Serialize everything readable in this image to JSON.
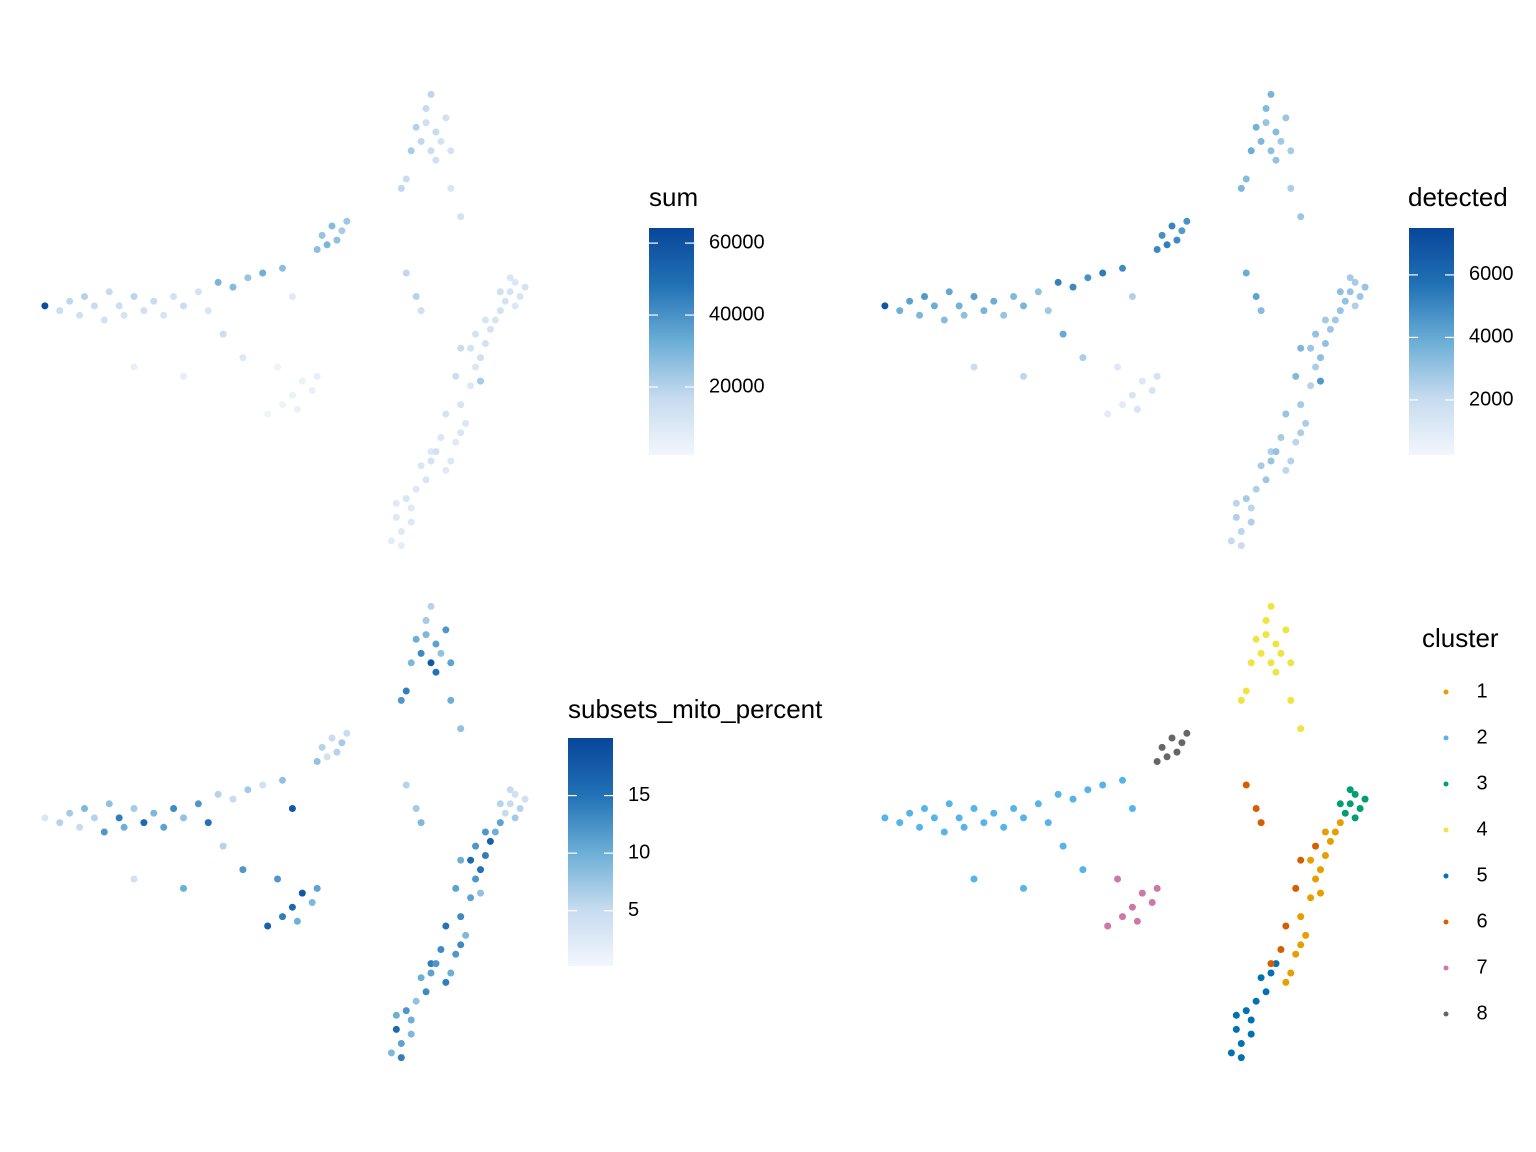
{
  "chart_data": [
    {
      "type": "scatter",
      "legend_title": "sum",
      "xlim": [
        0,
        100
      ],
      "ylim": [
        0,
        100
      ],
      "clim": [
        1100,
        64200
      ],
      "cticks": [
        20000,
        40000,
        60000
      ],
      "colorscale": [
        "#f2f6fc",
        "#c6dbef",
        "#6baed6",
        "#2171b5",
        "#08469a"
      ],
      "x": [
        2,
        5,
        7,
        9,
        10,
        12,
        14,
        15,
        17,
        18,
        20,
        22,
        24,
        26,
        28,
        30,
        33,
        35,
        37,
        40,
        43,
        46,
        50,
        52,
        38,
        30,
        20,
        42,
        79,
        81,
        78,
        82,
        80,
        77,
        83,
        79,
        81,
        76,
        84,
        80,
        75,
        84,
        86,
        74,
        96,
        97,
        98,
        95,
        97,
        99,
        94,
        96,
        93,
        91,
        89,
        92,
        88,
        86,
        87,
        90,
        85,
        84,
        88,
        94,
        90,
        86,
        83,
        91,
        85,
        83,
        82,
        86,
        80,
        89,
        77,
        75,
        78,
        72,
        74,
        73,
        76,
        75,
        77,
        79,
        78,
        80,
        74,
        76,
        81,
        73,
        49,
        52,
        54,
        56,
        50,
        57,
        47,
        53,
        58,
        60,
        62,
        59,
        61,
        63,
        57
      ],
      "y": [
        53,
        52,
        54,
        51,
        55,
        53,
        50,
        56,
        53,
        51,
        55,
        52,
        54,
        51,
        55,
        53,
        56,
        52,
        58,
        57,
        59,
        60,
        61,
        55,
        47,
        38,
        40,
        42,
        92,
        90,
        88,
        88,
        86,
        91,
        93,
        95,
        84,
        86,
        86,
        98,
        80,
        78,
        72,
        78,
        56,
        58,
        55,
        54,
        53,
        57,
        56,
        59,
        50,
        45,
        40,
        48,
        36,
        32,
        28,
        42,
        24,
        20,
        44,
        52,
        37,
        26,
        18,
        50,
        38,
        30,
        25,
        44,
        22,
        47,
        55,
        60,
        52,
        3,
        5,
        8,
        10,
        12,
        14,
        16,
        19,
        20,
        2,
        7,
        22,
        11,
        40,
        34,
        37,
        35,
        32,
        38,
        30,
        31,
        68,
        70,
        69,
        66,
        67,
        71,
        65
      ],
      "values": [
        62000,
        15000,
        18000,
        14000,
        20000,
        16000,
        13000,
        17000,
        15000,
        12000,
        19000,
        14000,
        16000,
        11000,
        13000,
        15000,
        12000,
        10000,
        30000,
        28000,
        25000,
        32000,
        27000,
        8000,
        15000,
        6000,
        5000,
        9000,
        14000,
        16000,
        18000,
        12000,
        15000,
        20000,
        13000,
        17000,
        14000,
        22000,
        12000,
        19000,
        16000,
        10000,
        13000,
        18000,
        12000,
        10000,
        11000,
        13000,
        9000,
        12000,
        14000,
        10000,
        11000,
        13000,
        10000,
        12000,
        9000,
        11000,
        10000,
        14000,
        8000,
        9000,
        12000,
        13000,
        22000,
        10000,
        8000,
        11000,
        15000,
        12000,
        10000,
        16000,
        9000,
        13000,
        20000,
        18000,
        14000,
        7000,
        8000,
        9000,
        8000,
        10000,
        9000,
        11000,
        10000,
        12000,
        6000,
        9000,
        13000,
        8000,
        3000,
        4000,
        3500,
        4500,
        3000,
        5000,
        2500,
        4000,
        25000,
        28000,
        22000,
        30000,
        26000,
        24000,
        27000
      ]
    },
    {
      "type": "scatter",
      "legend_title": "detected",
      "xlim": [
        0,
        100
      ],
      "ylim": [
        0,
        100
      ],
      "clim": [
        240,
        7500
      ],
      "cticks": [
        2000,
        4000,
        6000
      ],
      "colorscale": [
        "#f2f6fc",
        "#c6dbef",
        "#6baed6",
        "#2171b5",
        "#08469a"
      ],
      "x": [
        2,
        5,
        7,
        9,
        10,
        12,
        14,
        15,
        17,
        18,
        20,
        22,
        24,
        26,
        28,
        30,
        33,
        35,
        37,
        40,
        43,
        46,
        50,
        52,
        38,
        30,
        20,
        42,
        79,
        81,
        78,
        82,
        80,
        77,
        83,
        79,
        81,
        76,
        84,
        80,
        75,
        84,
        86,
        74,
        96,
        97,
        98,
        95,
        97,
        99,
        94,
        96,
        93,
        91,
        89,
        92,
        88,
        86,
        87,
        90,
        85,
        84,
        88,
        94,
        90,
        86,
        83,
        91,
        85,
        83,
        82,
        86,
        80,
        89,
        77,
        75,
        78,
        72,
        74,
        73,
        76,
        75,
        77,
        79,
        78,
        80,
        74,
        76,
        81,
        73,
        49,
        52,
        54,
        56,
        50,
        57,
        47,
        53,
        58,
        60,
        62,
        59,
        61,
        63,
        57
      ],
      "y": [
        53,
        52,
        54,
        51,
        55,
        53,
        50,
        56,
        53,
        51,
        55,
        52,
        54,
        51,
        55,
        53,
        56,
        52,
        58,
        57,
        59,
        60,
        61,
        55,
        47,
        38,
        40,
        42,
        92,
        90,
        88,
        88,
        86,
        91,
        93,
        95,
        84,
        86,
        86,
        98,
        80,
        78,
        72,
        78,
        56,
        58,
        55,
        54,
        53,
        57,
        56,
        59,
        50,
        45,
        40,
        48,
        36,
        32,
        28,
        42,
        24,
        20,
        44,
        52,
        37,
        26,
        18,
        50,
        38,
        30,
        25,
        44,
        22,
        47,
        55,
        60,
        52,
        3,
        5,
        8,
        10,
        12,
        14,
        16,
        19,
        20,
        2,
        7,
        22,
        11,
        40,
        34,
        37,
        35,
        32,
        38,
        30,
        31,
        68,
        70,
        69,
        66,
        67,
        71,
        65
      ],
      "values": [
        6900,
        3800,
        4200,
        3500,
        4500,
        3900,
        3300,
        4100,
        3700,
        3200,
        4300,
        3600,
        3900,
        3000,
        3400,
        3600,
        3100,
        2800,
        5200,
        5000,
        4700,
        5400,
        4900,
        2500,
        4000,
        2200,
        1900,
        2600,
        3000,
        3300,
        3500,
        2800,
        3200,
        3700,
        2900,
        3400,
        3100,
        3900,
        2700,
        3600,
        3300,
        2600,
        2900,
        3500,
        3000,
        2700,
        2900,
        3100,
        2500,
        3000,
        3200,
        2700,
        2800,
        3100,
        2600,
        2900,
        2400,
        2700,
        2600,
        3200,
        2300,
        2400,
        2900,
        3000,
        4500,
        2600,
        2200,
        2800,
        3400,
        3000,
        2700,
        3500,
        2500,
        3100,
        4200,
        3900,
        3300,
        2100,
        2300,
        2500,
        2300,
        2700,
        2500,
        2900,
        2700,
        3000,
        1900,
        2500,
        3100,
        2300,
        1100,
        1300,
        1200,
        1400,
        1000,
        1500,
        900,
        1300,
        4800,
        5100,
        4500,
        5300,
        4900,
        4700,
        5000
      ]
    },
    {
      "type": "scatter",
      "legend_title": "subsets_mito_percent",
      "xlim": [
        0,
        100
      ],
      "ylim": [
        0,
        100
      ],
      "clim": [
        0.2,
        20
      ],
      "cticks": [
        5,
        10,
        15
      ],
      "colorscale": [
        "#f2f6fc",
        "#c6dbef",
        "#6baed6",
        "#2171b5",
        "#08469a"
      ],
      "x": [
        2,
        5,
        7,
        9,
        10,
        12,
        14,
        15,
        17,
        18,
        20,
        22,
        24,
        26,
        28,
        30,
        33,
        35,
        37,
        40,
        43,
        46,
        50,
        52,
        38,
        30,
        20,
        42,
        79,
        81,
        78,
        82,
        80,
        77,
        83,
        79,
        81,
        76,
        84,
        80,
        75,
        84,
        86,
        74,
        96,
        97,
        98,
        95,
        97,
        99,
        94,
        96,
        93,
        91,
        89,
        92,
        88,
        86,
        87,
        90,
        85,
        84,
        88,
        94,
        90,
        86,
        83,
        91,
        85,
        83,
        82,
        86,
        80,
        89,
        77,
        75,
        78,
        72,
        74,
        73,
        76,
        75,
        77,
        79,
        78,
        80,
        74,
        76,
        81,
        73,
        49,
        52,
        54,
        56,
        50,
        57,
        47,
        53,
        58,
        60,
        62,
        59,
        61,
        63,
        57
      ],
      "y": [
        53,
        52,
        54,
        51,
        55,
        53,
        50,
        56,
        53,
        51,
        55,
        52,
        54,
        51,
        55,
        53,
        56,
        52,
        58,
        57,
        59,
        60,
        61,
        55,
        47,
        38,
        40,
        42,
        92,
        90,
        88,
        88,
        86,
        91,
        93,
        95,
        84,
        86,
        86,
        98,
        80,
        78,
        72,
        78,
        56,
        58,
        55,
        54,
        53,
        57,
        56,
        59,
        50,
        45,
        40,
        48,
        36,
        32,
        28,
        42,
        24,
        20,
        44,
        52,
        37,
        26,
        18,
        50,
        38,
        30,
        25,
        44,
        22,
        47,
        55,
        60,
        52,
        3,
        5,
        8,
        10,
        12,
        14,
        16,
        19,
        20,
        2,
        7,
        22,
        11,
        40,
        34,
        37,
        35,
        32,
        38,
        30,
        31,
        68,
        70,
        69,
        66,
        67,
        71,
        65
      ],
      "values": [
        3,
        6,
        7,
        5,
        9,
        6,
        12,
        8,
        14,
        10,
        7,
        16,
        9,
        11,
        13,
        8,
        12,
        15,
        6,
        5,
        7,
        4,
        8,
        18,
        6,
        10,
        4,
        12,
        9,
        11,
        13,
        8,
        18,
        10,
        12,
        7,
        15,
        9,
        11,
        6,
        14,
        10,
        8,
        12,
        5,
        4,
        6,
        5,
        7,
        4,
        6,
        5,
        10,
        14,
        12,
        17,
        11,
        13,
        9,
        15,
        12,
        10,
        16,
        11,
        8,
        13,
        14,
        12,
        11,
        15,
        13,
        10,
        14,
        12,
        7,
        6,
        9,
        9,
        11,
        16,
        10,
        12,
        8,
        13,
        10,
        11,
        14,
        9,
        12,
        10,
        12,
        16,
        18,
        9,
        14,
        11,
        17,
        10,
        6,
        5,
        7,
        4,
        6,
        5,
        8
      ]
    },
    {
      "type": "scatter",
      "legend_title": "cluster",
      "xlim": [
        0,
        100
      ],
      "ylim": [
        0,
        100
      ],
      "series": [
        {
          "name": "1",
          "color": "#E69F00",
          "x": [
            93,
            91,
            89,
            92,
            88,
            86,
            87,
            90,
            85,
            84,
            88,
            94,
            90,
            86,
            83,
            91
          ],
          "y": [
            50,
            45,
            40,
            48,
            36,
            32,
            28,
            42,
            24,
            20,
            44,
            52,
            37,
            26,
            18,
            50
          ]
        },
        {
          "name": "2",
          "color": "#56B4E9",
          "x": [
            2,
            5,
            7,
            9,
            10,
            12,
            14,
            15,
            17,
            18,
            20,
            22,
            24,
            26,
            28,
            30,
            33,
            35,
            37,
            40,
            43,
            46,
            50,
            52,
            38,
            30,
            20,
            42
          ],
          "y": [
            53,
            52,
            54,
            51,
            55,
            53,
            50,
            56,
            53,
            51,
            55,
            52,
            54,
            51,
            55,
            53,
            56,
            52,
            58,
            57,
            59,
            60,
            61,
            55,
            47,
            38,
            40,
            42
          ]
        },
        {
          "name": "3",
          "color": "#009E73",
          "x": [
            96,
            97,
            98,
            95,
            97,
            99,
            94,
            96
          ],
          "y": [
            56,
            58,
            55,
            54,
            53,
            57,
            56,
            59
          ]
        },
        {
          "name": "4",
          "color": "#F0E442",
          "x": [
            79,
            81,
            78,
            82,
            80,
            77,
            83,
            79,
            81,
            76,
            84,
            80,
            75,
            84,
            86,
            74
          ],
          "y": [
            92,
            90,
            88,
            88,
            86,
            91,
            93,
            95,
            84,
            86,
            86,
            98,
            80,
            78,
            72,
            78
          ]
        },
        {
          "name": "5",
          "color": "#0072B2",
          "x": [
            72,
            74,
            73,
            76,
            75,
            77,
            79,
            78,
            80,
            74,
            76,
            81,
            73
          ],
          "y": [
            3,
            5,
            8,
            10,
            12,
            14,
            16,
            19,
            20,
            2,
            7,
            22,
            11
          ]
        },
        {
          "name": "6",
          "color": "#D55E00",
          "x": [
            85,
            83,
            82,
            86,
            80,
            89,
            77,
            75,
            78
          ],
          "y": [
            38,
            30,
            25,
            44,
            22,
            47,
            55,
            60,
            52
          ]
        },
        {
          "name": "7",
          "color": "#CC79A7",
          "x": [
            49,
            52,
            54,
            56,
            50,
            57,
            47,
            53
          ],
          "y": [
            40,
            34,
            37,
            35,
            32,
            38,
            30,
            31
          ]
        },
        {
          "name": "8",
          "color": "#666666",
          "x": [
            58,
            60,
            62,
            59,
            61,
            63,
            57
          ],
          "y": [
            68,
            70,
            69,
            66,
            67,
            71,
            65
          ]
        }
      ]
    }
  ]
}
